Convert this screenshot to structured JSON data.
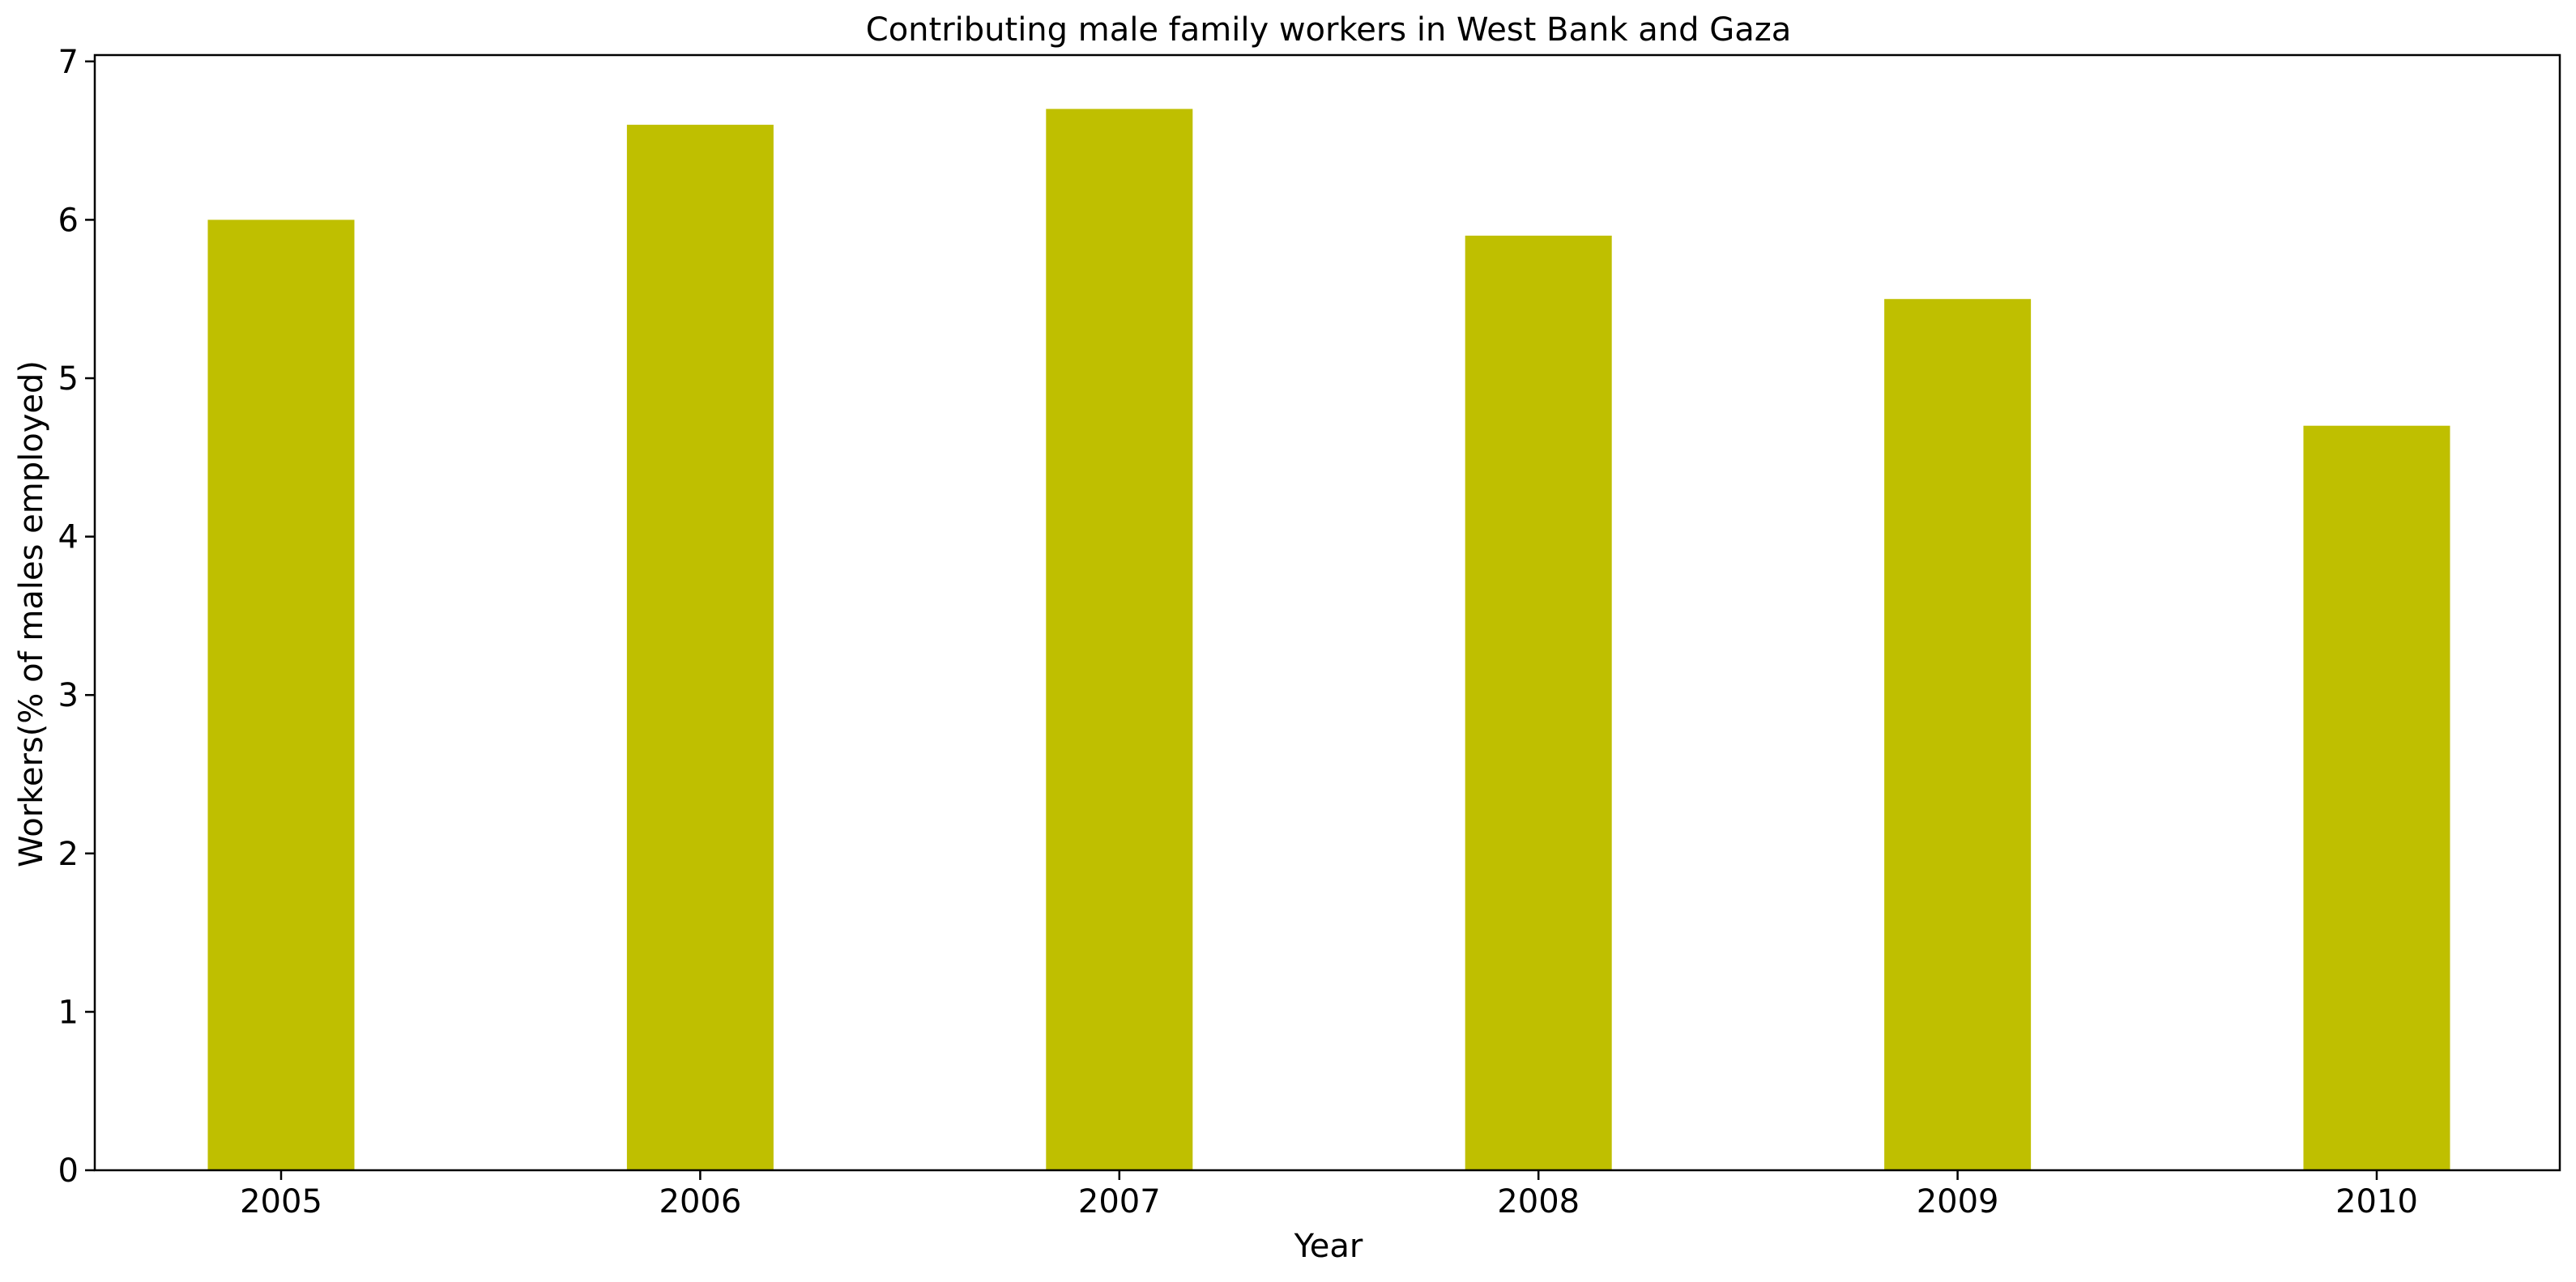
{
  "chart_data": {
    "type": "bar",
    "title": "Contributing male family workers in West Bank and Gaza",
    "xlabel": "Year",
    "ylabel": "Workers(% of males employed)",
    "categories": [
      "2005",
      "2006",
      "2007",
      "2008",
      "2009",
      "2010"
    ],
    "values": [
      6.0,
      6.6,
      6.7,
      5.9,
      5.5,
      4.7
    ],
    "ylim": [
      0,
      7.04
    ],
    "yticks": [
      "0",
      "1",
      "2",
      "3",
      "4",
      "5",
      "6",
      "7"
    ],
    "bar_color": "#bfbf00",
    "grid": false,
    "legend": "none"
  }
}
